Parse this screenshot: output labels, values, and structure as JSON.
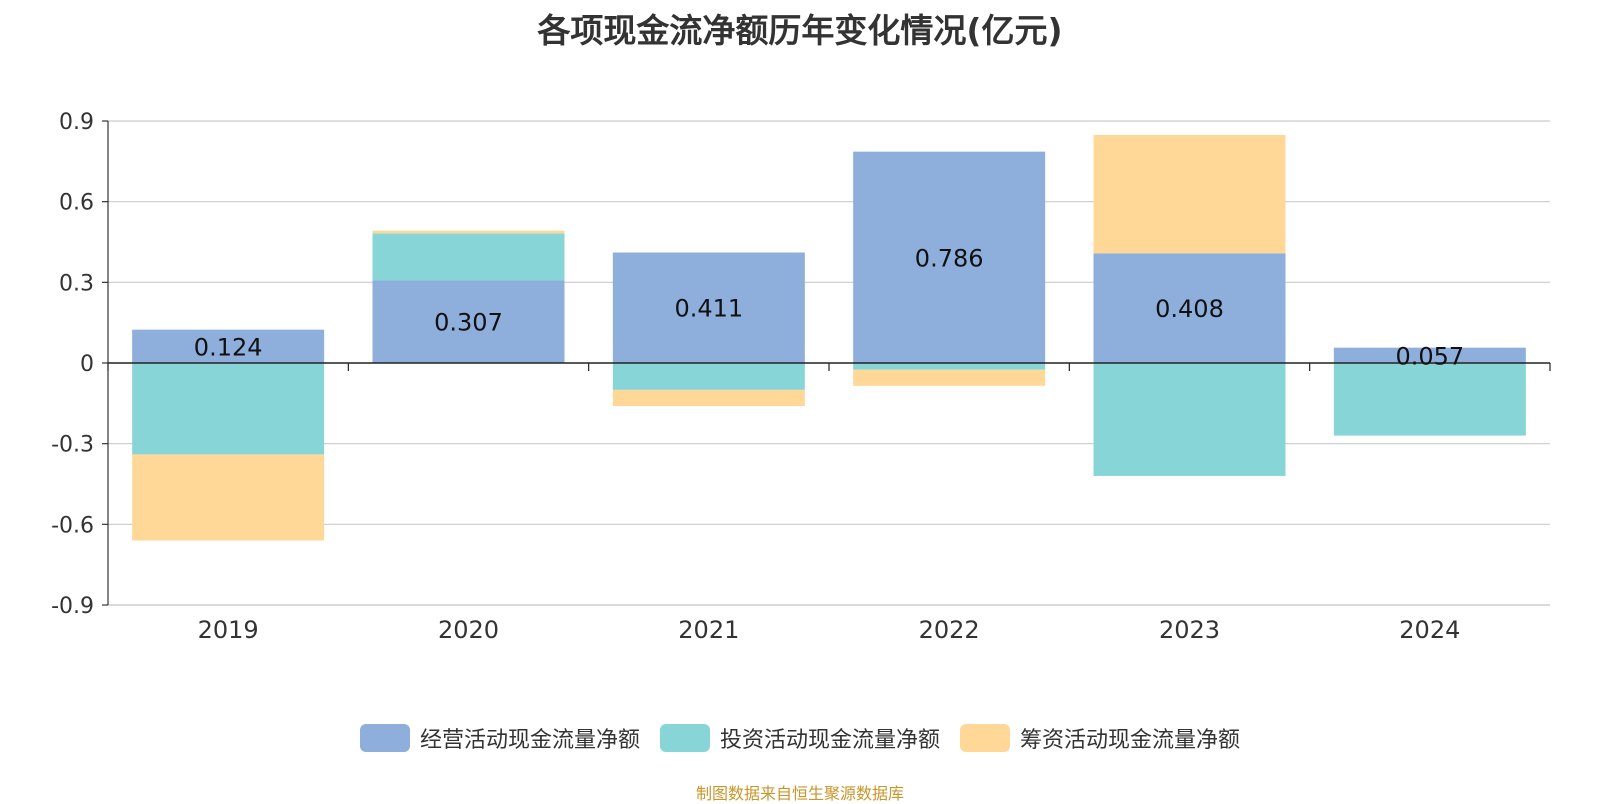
{
  "chart_data": {
    "type": "bar",
    "stacked": true,
    "title": "各项现金流净额历年变化情况(亿元)",
    "categories": [
      "2019",
      "2020",
      "2021",
      "2022",
      "2023",
      "2024"
    ],
    "series": [
      {
        "name": "经营活动现金流量净额",
        "color": "#8eaedc",
        "values": [
          0.124,
          0.307,
          0.411,
          0.786,
          0.408,
          0.057
        ],
        "show_labels": true
      },
      {
        "name": "投资活动现金流量净额",
        "color": "#88d5d8",
        "values": [
          -0.34,
          0.175,
          -0.1,
          -0.025,
          -0.42,
          -0.27
        ],
        "show_labels": false
      },
      {
        "name": "筹资活动现金流量净额",
        "color": "#ffd898",
        "values": [
          -0.32,
          0.01,
          -0.06,
          -0.06,
          0.44,
          0
        ],
        "show_labels": false
      }
    ],
    "ylim": [
      -0.9,
      0.9
    ],
    "yticks": [
      0.9,
      0.6,
      0.3,
      0,
      -0.3,
      -0.6,
      -0.9
    ],
    "ytick_labels": [
      "0.9",
      "0.6",
      "0.3",
      "0",
      "-0.3",
      "-0.6",
      "-0.9"
    ],
    "xlabel": "",
    "ylabel": "",
    "grid": true,
    "legend_position": "bottom"
  },
  "footer": {
    "source": "制图数据来自恒生聚源数据库"
  }
}
